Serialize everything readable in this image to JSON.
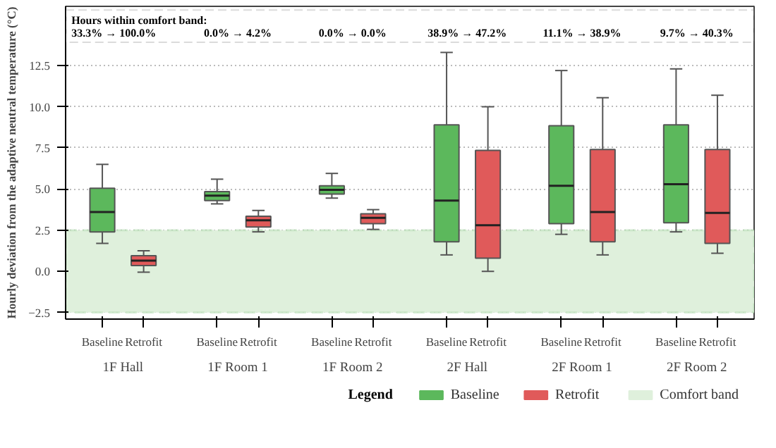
{
  "chart_data": {
    "type": "box",
    "ylabel": "Hourly deviation from the adaptive neutral temperature (°C)",
    "categories": [
      "1F Hall",
      "1F Room 1",
      "1F Room 2",
      "2F Hall",
      "2F Room 1",
      "2F Room 2"
    ],
    "series": [
      {
        "name": "Baseline",
        "color": "#5cb85c",
        "boxes": [
          {
            "low": 1.7,
            "q1": 2.4,
            "median": 3.6,
            "q3": 5.05,
            "high": 6.5
          },
          {
            "low": 4.1,
            "q1": 4.3,
            "median": 4.6,
            "q3": 4.85,
            "high": 5.6
          },
          {
            "low": 4.45,
            "q1": 4.7,
            "median": 4.95,
            "q3": 5.2,
            "high": 5.95
          },
          {
            "low": 1.0,
            "q1": 1.8,
            "median": 4.3,
            "q3": 8.9,
            "high": 13.3
          },
          {
            "low": 2.25,
            "q1": 2.9,
            "median": 5.2,
            "q3": 8.85,
            "high": 12.2
          },
          {
            "low": 2.4,
            "q1": 2.95,
            "median": 5.3,
            "q3": 8.9,
            "high": 12.3
          }
        ]
      },
      {
        "name": "Retrofit",
        "color": "#e05a5a",
        "boxes": [
          {
            "low": -0.05,
            "q1": 0.35,
            "median": 0.65,
            "q3": 0.95,
            "high": 1.25
          },
          {
            "low": 2.4,
            "q1": 2.7,
            "median": 3.1,
            "q3": 3.35,
            "high": 3.7
          },
          {
            "low": 2.55,
            "q1": 2.9,
            "median": 3.25,
            "q3": 3.5,
            "high": 3.75
          },
          {
            "low": 0.0,
            "q1": 0.8,
            "median": 2.8,
            "q3": 7.35,
            "high": 10.0
          },
          {
            "low": 1.0,
            "q1": 1.8,
            "median": 3.6,
            "q3": 7.4,
            "high": 10.55
          },
          {
            "low": 1.1,
            "q1": 1.7,
            "median": 3.55,
            "q3": 7.4,
            "high": 10.7
          }
        ]
      }
    ],
    "ylim": [
      -2.9,
      16.1
    ],
    "yticks": [
      {
        "value": -2.5,
        "label": "−2.5"
      },
      {
        "value": 0,
        "label": "0.0"
      },
      2.5,
      {
        "value": 5,
        "label": "5.0"
      },
      7.5,
      {
        "value": 10,
        "label": "10.0"
      },
      12.5
    ],
    "bands": [
      {
        "axis": "y",
        "from": -2.5,
        "to": 2.5,
        "label": "Comfort band",
        "color": "#dff0dc"
      }
    ],
    "annotations": [
      "Hours within comfort band:",
      "33.3% → 100.0%",
      "0.0% → 4.2%",
      "0.0% → 0.0%",
      "38.9% → 47.2%",
      "11.1% → 38.9%",
      "9.7% → 40.3%"
    ],
    "legend_title": "Legend",
    "legend": "bottom",
    "grid": "y"
  }
}
